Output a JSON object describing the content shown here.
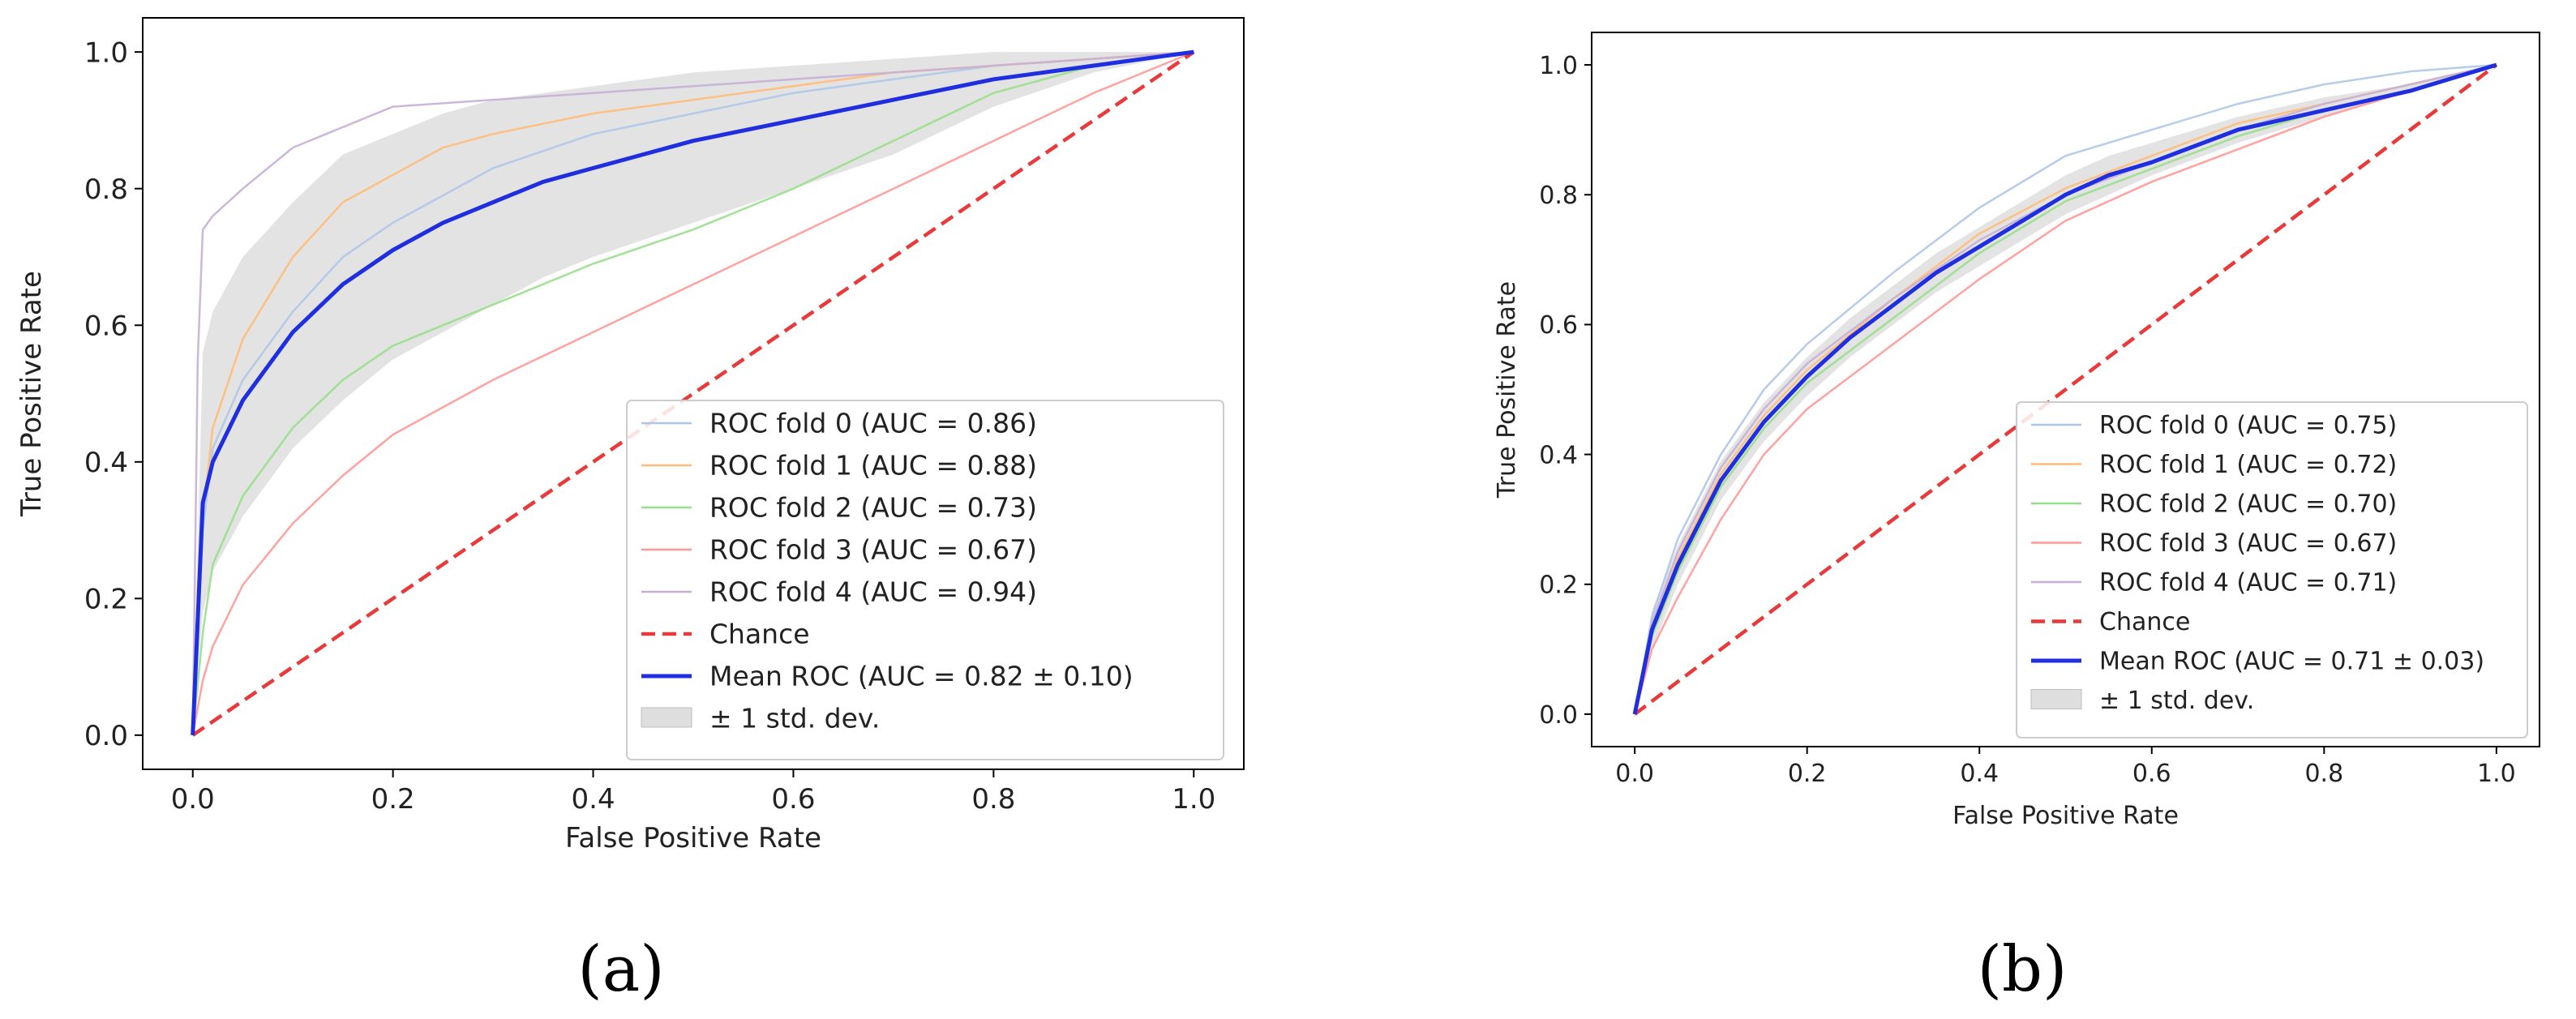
{
  "chart_data": [
    {
      "type": "line",
      "caption": "(a)",
      "xlabel": "False Positive Rate",
      "ylabel": "True Positive Rate",
      "xlim": [
        -0.05,
        1.05
      ],
      "ylim": [
        -0.05,
        1.05
      ],
      "xticks": [
        "0.0",
        "0.2",
        "0.4",
        "0.6",
        "0.8",
        "1.0"
      ],
      "yticks": [
        "0.0",
        "0.2",
        "0.4",
        "0.6",
        "0.8",
        "1.0"
      ],
      "legend_position": "lower-right",
      "series": [
        {
          "name": "ROC fold 0 (AUC = 0.86)",
          "color": "#aec7e8",
          "x": [
            0,
            0.01,
            0.02,
            0.05,
            0.1,
            0.15,
            0.2,
            0.3,
            0.4,
            0.5,
            0.6,
            0.7,
            0.8,
            0.9,
            1.0
          ],
          "y": [
            0,
            0.3,
            0.42,
            0.52,
            0.62,
            0.7,
            0.75,
            0.83,
            0.88,
            0.91,
            0.94,
            0.96,
            0.98,
            0.99,
            1.0
          ]
        },
        {
          "name": "ROC fold 1 (AUC = 0.88)",
          "color": "#ffbb78",
          "x": [
            0,
            0.01,
            0.02,
            0.05,
            0.1,
            0.15,
            0.2,
            0.25,
            0.3,
            0.4,
            0.5,
            0.6,
            0.7,
            0.8,
            0.9,
            1.0
          ],
          "y": [
            0,
            0.32,
            0.45,
            0.58,
            0.7,
            0.78,
            0.82,
            0.86,
            0.88,
            0.91,
            0.93,
            0.95,
            0.97,
            0.98,
            0.99,
            1.0
          ]
        },
        {
          "name": "ROC fold 2 (AUC = 0.73)",
          "color": "#98df8a",
          "x": [
            0,
            0.01,
            0.02,
            0.05,
            0.1,
            0.15,
            0.2,
            0.3,
            0.4,
            0.5,
            0.6,
            0.7,
            0.8,
            0.9,
            1.0
          ],
          "y": [
            0,
            0.15,
            0.25,
            0.35,
            0.45,
            0.52,
            0.57,
            0.63,
            0.69,
            0.74,
            0.8,
            0.87,
            0.94,
            0.98,
            1.0
          ]
        },
        {
          "name": "ROC fold 3 (AUC = 0.67)",
          "color": "#ff9896",
          "x": [
            0,
            0.01,
            0.02,
            0.05,
            0.1,
            0.15,
            0.2,
            0.3,
            0.4,
            0.5,
            0.6,
            0.7,
            0.8,
            0.9,
            1.0
          ],
          "y": [
            0,
            0.08,
            0.13,
            0.22,
            0.31,
            0.38,
            0.44,
            0.52,
            0.59,
            0.66,
            0.73,
            0.8,
            0.87,
            0.94,
            1.0
          ]
        },
        {
          "name": "ROC fold 4 (AUC = 0.94)",
          "color": "#c5b0d5",
          "x": [
            0,
            0.005,
            0.01,
            0.02,
            0.05,
            0.1,
            0.15,
            0.2,
            0.3,
            0.4,
            0.5,
            0.6,
            0.7,
            0.8,
            0.9,
            1.0
          ],
          "y": [
            0,
            0.55,
            0.74,
            0.76,
            0.8,
            0.86,
            0.89,
            0.92,
            0.93,
            0.94,
            0.95,
            0.96,
            0.97,
            0.98,
            0.99,
            1.0
          ]
        },
        {
          "name": "Chance",
          "color": "#e83a3a",
          "dashed": true,
          "x": [
            0,
            1
          ],
          "y": [
            0,
            1
          ]
        },
        {
          "name": "Mean ROC (AUC = 0.82 ± 0.10)",
          "color": "#1f2fe0",
          "bold": true,
          "x": [
            0,
            0.01,
            0.02,
            0.05,
            0.1,
            0.15,
            0.2,
            0.25,
            0.3,
            0.35,
            0.4,
            0.5,
            0.6,
            0.7,
            0.8,
            0.9,
            1.0
          ],
          "y": [
            0,
            0.34,
            0.4,
            0.49,
            0.59,
            0.66,
            0.71,
            0.75,
            0.78,
            0.81,
            0.83,
            0.87,
            0.9,
            0.93,
            0.96,
            0.98,
            1.0
          ]
        }
      ],
      "band": {
        "name": "± 1 std. dev.",
        "x": [
          0,
          0.01,
          0.02,
          0.05,
          0.1,
          0.15,
          0.2,
          0.25,
          0.3,
          0.35,
          0.4,
          0.5,
          0.6,
          0.7,
          0.8,
          0.9,
          1.0
        ],
        "lower": [
          0,
          0.18,
          0.24,
          0.32,
          0.42,
          0.49,
          0.55,
          0.59,
          0.63,
          0.67,
          0.7,
          0.75,
          0.8,
          0.85,
          0.92,
          0.97,
          1.0
        ],
        "upper": [
          0,
          0.56,
          0.62,
          0.7,
          0.78,
          0.85,
          0.88,
          0.91,
          0.93,
          0.94,
          0.95,
          0.97,
          0.98,
          0.99,
          1.0,
          1.0,
          1.0
        ]
      }
    },
    {
      "type": "line",
      "caption": "(b)",
      "xlabel": "False Positive Rate",
      "ylabel": "True Positive Rate",
      "xlim": [
        -0.05,
        1.05
      ],
      "ylim": [
        -0.05,
        1.05
      ],
      "xticks": [
        "0.0",
        "0.2",
        "0.4",
        "0.6",
        "0.8",
        "1.0"
      ],
      "yticks": [
        "0.0",
        "0.2",
        "0.4",
        "0.6",
        "0.8",
        "1.0"
      ],
      "legend_position": "lower-right",
      "series": [
        {
          "name": "ROC fold 0 (AUC = 0.75)",
          "color": "#aec7e8",
          "x": [
            0,
            0.02,
            0.05,
            0.1,
            0.15,
            0.2,
            0.3,
            0.4,
            0.5,
            0.6,
            0.7,
            0.8,
            0.9,
            1.0
          ],
          "y": [
            0,
            0.15,
            0.27,
            0.4,
            0.5,
            0.57,
            0.68,
            0.78,
            0.86,
            0.9,
            0.94,
            0.97,
            0.99,
            1.0
          ]
        },
        {
          "name": "ROC fold 1 (AUC = 0.72)",
          "color": "#ffbb78",
          "x": [
            0,
            0.02,
            0.05,
            0.1,
            0.15,
            0.2,
            0.3,
            0.4,
            0.5,
            0.6,
            0.7,
            0.8,
            0.9,
            1.0
          ],
          "y": [
            0,
            0.13,
            0.24,
            0.37,
            0.46,
            0.53,
            0.64,
            0.74,
            0.81,
            0.86,
            0.91,
            0.94,
            0.97,
            1.0
          ]
        },
        {
          "name": "ROC fold 2 (AUC = 0.70)",
          "color": "#98df8a",
          "x": [
            0,
            0.02,
            0.05,
            0.1,
            0.15,
            0.2,
            0.3,
            0.4,
            0.5,
            0.6,
            0.7,
            0.8,
            0.9,
            1.0
          ],
          "y": [
            0,
            0.12,
            0.22,
            0.35,
            0.44,
            0.51,
            0.61,
            0.71,
            0.79,
            0.84,
            0.89,
            0.93,
            0.96,
            1.0
          ]
        },
        {
          "name": "ROC fold 3 (AUC = 0.67)",
          "color": "#ff9896",
          "x": [
            0,
            0.02,
            0.05,
            0.1,
            0.15,
            0.2,
            0.3,
            0.4,
            0.5,
            0.6,
            0.7,
            0.8,
            0.9,
            1.0
          ],
          "y": [
            0,
            0.1,
            0.18,
            0.3,
            0.4,
            0.47,
            0.57,
            0.67,
            0.76,
            0.82,
            0.87,
            0.92,
            0.96,
            1.0
          ]
        },
        {
          "name": "ROC fold 4 (AUC = 0.71)",
          "color": "#c5b0d5",
          "x": [
            0,
            0.02,
            0.05,
            0.1,
            0.15,
            0.2,
            0.3,
            0.4,
            0.5,
            0.6,
            0.7,
            0.8,
            0.9,
            1.0
          ],
          "y": [
            0,
            0.14,
            0.25,
            0.38,
            0.47,
            0.54,
            0.64,
            0.73,
            0.8,
            0.85,
            0.9,
            0.94,
            0.97,
            1.0
          ]
        },
        {
          "name": "Chance",
          "color": "#e83a3a",
          "dashed": true,
          "x": [
            0,
            1
          ],
          "y": [
            0,
            1
          ]
        },
        {
          "name": "Mean ROC (AUC = 0.71 ± 0.03)",
          "color": "#1f2fe0",
          "bold": true,
          "x": [
            0,
            0.02,
            0.05,
            0.1,
            0.15,
            0.2,
            0.25,
            0.3,
            0.35,
            0.4,
            0.45,
            0.5,
            0.55,
            0.6,
            0.7,
            0.8,
            0.9,
            1.0
          ],
          "y": [
            0,
            0.13,
            0.23,
            0.36,
            0.45,
            0.52,
            0.58,
            0.63,
            0.68,
            0.72,
            0.76,
            0.8,
            0.83,
            0.85,
            0.9,
            0.93,
            0.96,
            1.0
          ]
        }
      ],
      "band": {
        "name": "± 1 std. dev.",
        "x": [
          0,
          0.02,
          0.05,
          0.1,
          0.15,
          0.2,
          0.25,
          0.3,
          0.35,
          0.4,
          0.45,
          0.5,
          0.55,
          0.6,
          0.7,
          0.8,
          0.9,
          1.0
        ],
        "lower": [
          0,
          0.1,
          0.2,
          0.33,
          0.42,
          0.49,
          0.55,
          0.6,
          0.65,
          0.69,
          0.73,
          0.77,
          0.8,
          0.83,
          0.88,
          0.92,
          0.96,
          1.0
        ],
        "upper": [
          0,
          0.16,
          0.26,
          0.39,
          0.48,
          0.55,
          0.61,
          0.66,
          0.71,
          0.75,
          0.79,
          0.83,
          0.86,
          0.88,
          0.92,
          0.95,
          0.97,
          1.0
        ]
      }
    }
  ]
}
